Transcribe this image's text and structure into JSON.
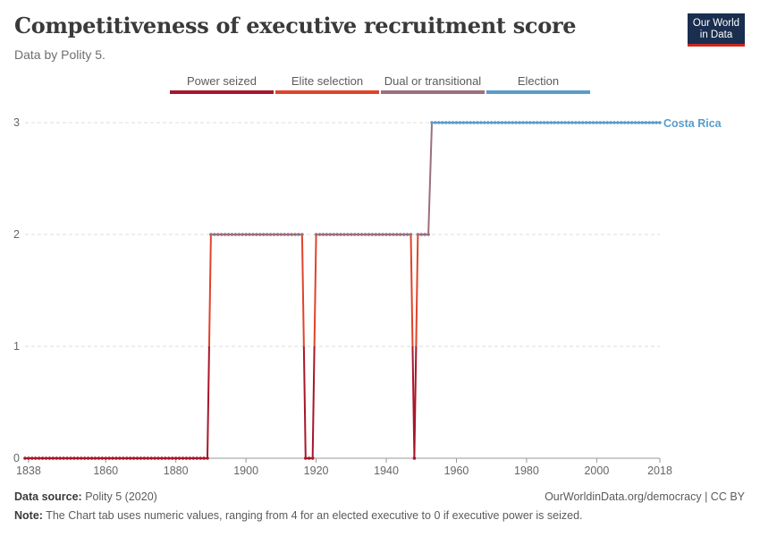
{
  "header": {
    "title": "Competitiveness of executive recruitment score",
    "subtitle": "Data by Polity 5.",
    "logo_line1": "Our World",
    "logo_line2": "in Data"
  },
  "legend": {
    "items": [
      {
        "label": "Power seized",
        "color": "#a8162b"
      },
      {
        "label": "Elite selection",
        "color": "#e1432a"
      },
      {
        "label": "Dual or transitional",
        "color": "#9b707c"
      },
      {
        "label": "Election",
        "color": "#5a9cc9"
      }
    ]
  },
  "footer": {
    "source_label": "Data source:",
    "source_value": "Polity 5 (2020)",
    "url": "OurWorldinData.org/democracy | CC BY",
    "note_label": "Note:",
    "note_value": "The Chart tab uses numeric values, ranging from 4 for an elected executive to 0 if executive power is seized."
  },
  "chart_data": {
    "type": "line",
    "title": "Competitiveness of executive recruitment score",
    "xlabel": "",
    "ylabel": "",
    "xlim": [
      1837,
      2018
    ],
    "ylim": [
      0,
      3
    ],
    "x_ticks": [
      "1838",
      "1860",
      "1880",
      "1900",
      "1920",
      "1940",
      "1960",
      "1980",
      "2000",
      "2018"
    ],
    "y_ticks": [
      "0",
      "1",
      "2",
      "3"
    ],
    "grid": "horizontal dashed",
    "series": [
      {
        "name": "Costa Rica",
        "segments": [
          {
            "start": 1837,
            "end": 1889,
            "value": 0
          },
          {
            "start": 1890,
            "end": 1916,
            "value": 2
          },
          {
            "start": 1917,
            "end": 1919,
            "value": 0
          },
          {
            "start": 1920,
            "end": 1947,
            "value": 2
          },
          {
            "start": 1948,
            "end": 1948,
            "value": 0
          },
          {
            "start": 1949,
            "end": 1952,
            "value": 2
          },
          {
            "start": 1953,
            "end": 2018,
            "value": 3
          }
        ]
      }
    ]
  }
}
